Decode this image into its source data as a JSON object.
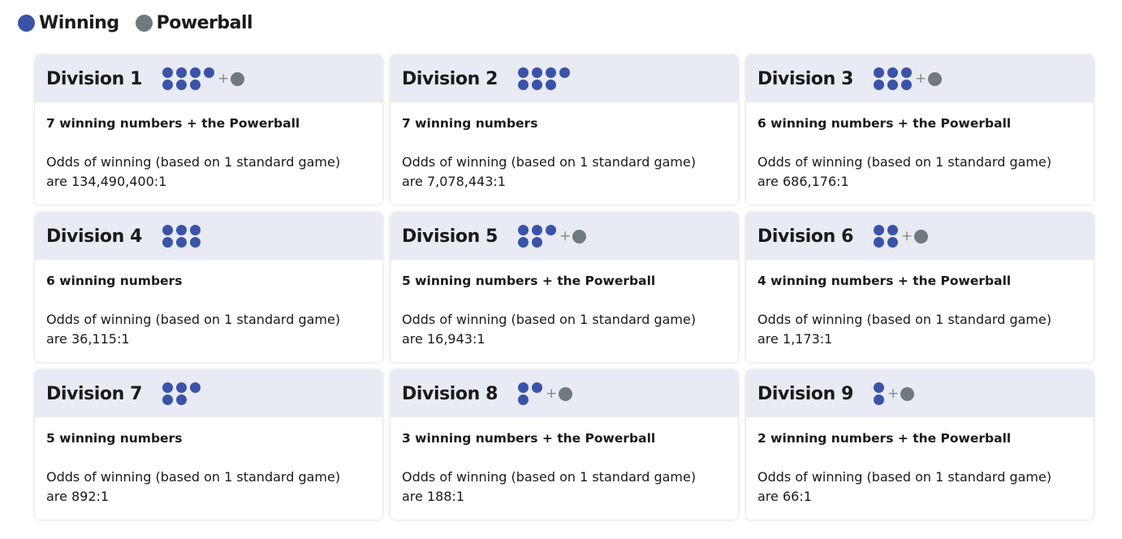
{
  "legend": {
    "winning": "Winning",
    "powerball": "Powerball"
  },
  "plus": "+",
  "divisions": [
    {
      "title": "Division 1",
      "winning_balls": 7,
      "powerball": true,
      "description": "7 winning numbers + the Powerball",
      "odds_label": "Odds of winning (based on 1 standard game)",
      "odds": "are 134,490,400:1"
    },
    {
      "title": "Division 2",
      "winning_balls": 7,
      "powerball": false,
      "description": "7 winning numbers",
      "odds_label": "Odds of winning (based on 1 standard game)",
      "odds": "are 7,078,443:1"
    },
    {
      "title": "Division 3",
      "winning_balls": 6,
      "powerball": true,
      "description": "6 winning numbers + the Powerball",
      "odds_label": "Odds of winning (based on 1 standard game)",
      "odds": "are 686,176:1"
    },
    {
      "title": "Division 4",
      "winning_balls": 6,
      "powerball": false,
      "description": "6 winning numbers",
      "odds_label": "Odds of winning (based on 1 standard game)",
      "odds": "are 36,115:1"
    },
    {
      "title": "Division 5",
      "winning_balls": 5,
      "powerball": true,
      "description": "5 winning numbers + the Powerball",
      "odds_label": "Odds of winning (based on 1 standard game)",
      "odds": "are 16,943:1"
    },
    {
      "title": "Division 6",
      "winning_balls": 4,
      "powerball": true,
      "description": "4 winning numbers + the Powerball",
      "odds_label": "Odds of winning (based on 1 standard game)",
      "odds": "are 1,173:1"
    },
    {
      "title": "Division 7",
      "winning_balls": 5,
      "powerball": false,
      "description": "5 winning numbers",
      "odds_label": "Odds of winning (based on 1 standard game)",
      "odds": "are 892:1"
    },
    {
      "title": "Division 8",
      "winning_balls": 3,
      "powerball": true,
      "description": "3 winning numbers + the Powerball",
      "odds_label": "Odds of winning (based on 1 standard game)",
      "odds": "are 188:1"
    },
    {
      "title": "Division 9",
      "winning_balls": 2,
      "powerball": true,
      "description": "2 winning numbers + the Powerball",
      "odds_label": "Odds of winning (based on 1 standard game)",
      "odds": "are 66:1"
    }
  ]
}
